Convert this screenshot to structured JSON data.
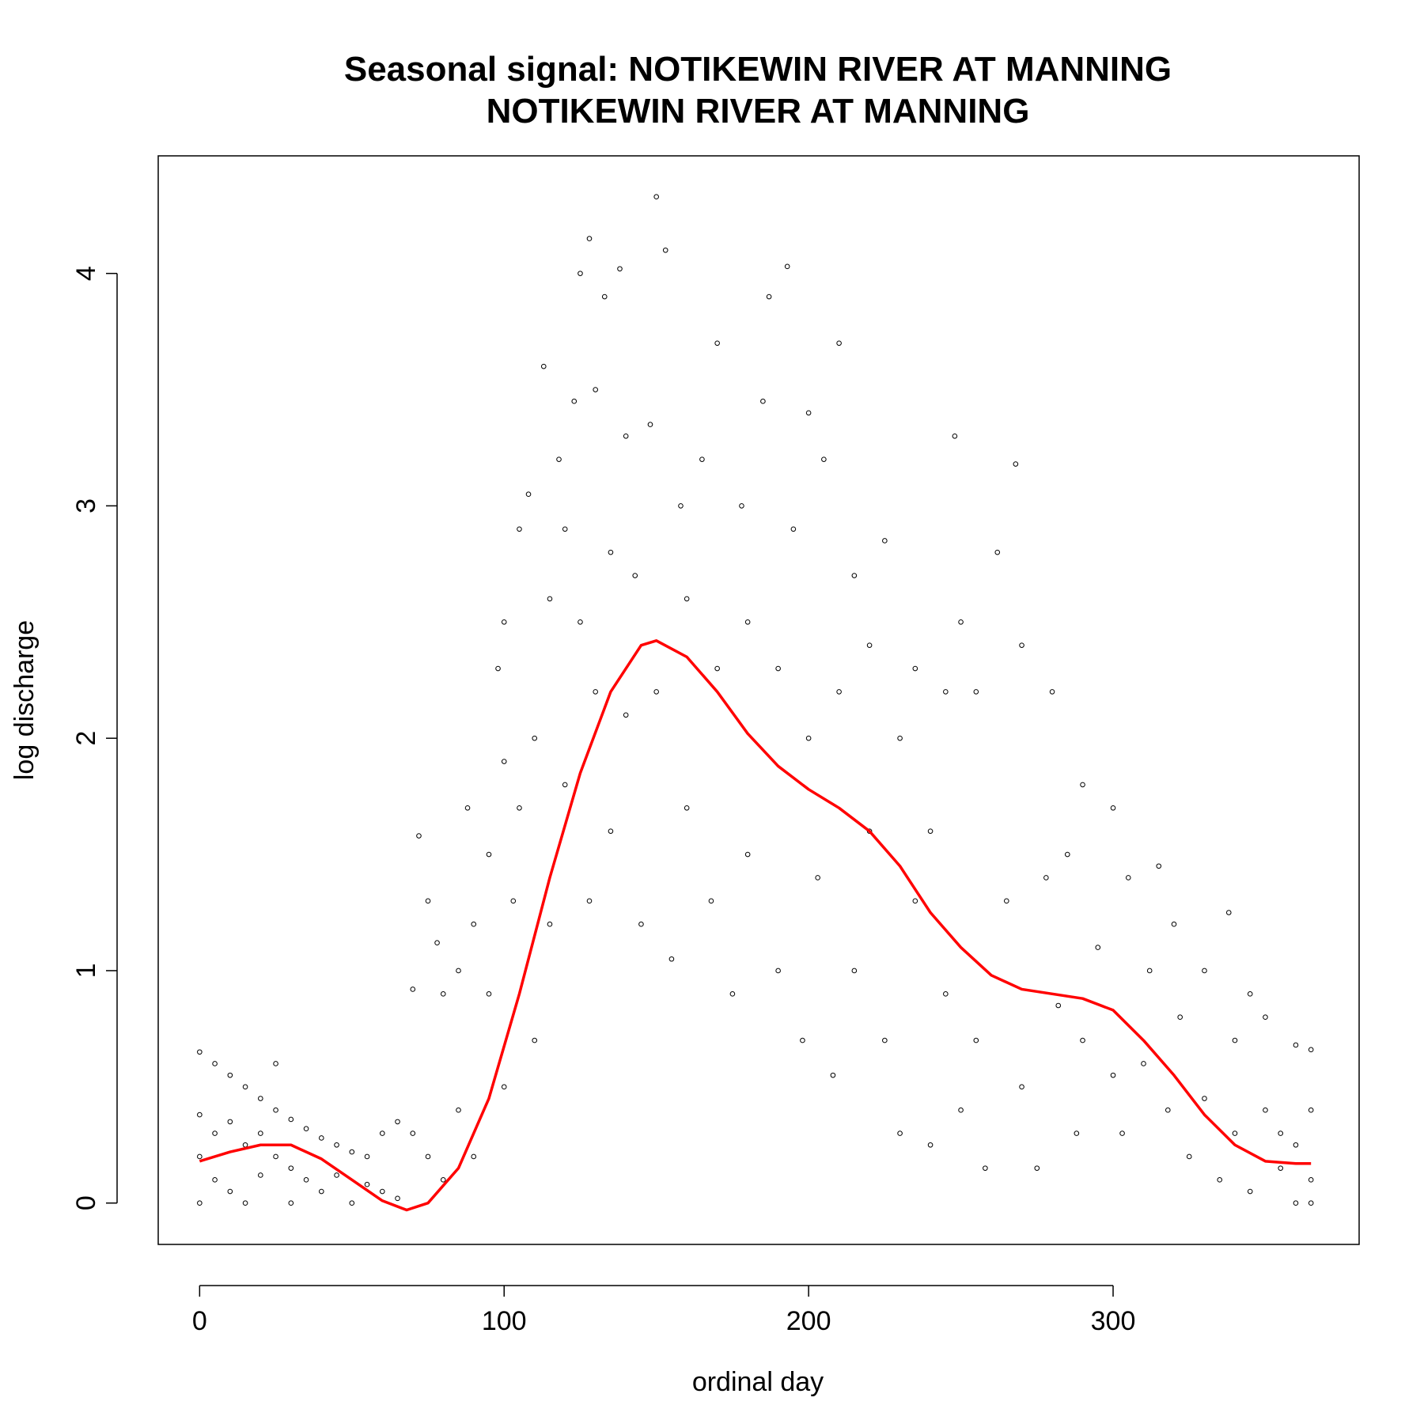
{
  "chart_data": {
    "type": "scatter",
    "title": [
      "Seasonal signal: NOTIKEWIN RIVER AT MANNING",
      "NOTIKEWIN RIVER AT MANNING"
    ],
    "x_label": "ordinal day",
    "y_label": "log discharge",
    "xlim": [
      -13.6,
      380.8
    ],
    "ylim": [
      -0.178,
      4.506
    ],
    "xticks": [
      0,
      100,
      200,
      300
    ],
    "yticks": [
      0,
      1,
      2,
      3,
      4
    ],
    "grid": false,
    "series": [
      {
        "type": "scatter",
        "color": "#000000",
        "x": [
          0,
          0,
          0,
          0,
          5,
          5,
          5,
          10,
          10,
          10,
          15,
          15,
          15,
          20,
          20,
          20,
          25,
          25,
          25,
          30,
          30,
          30,
          35,
          35,
          40,
          40,
          45,
          45,
          50,
          50,
          55,
          55,
          60,
          60,
          65,
          65,
          70,
          70,
          72,
          75,
          75,
          78,
          80,
          80,
          85,
          85,
          88,
          90,
          90,
          95,
          95,
          98,
          100,
          100,
          100,
          103,
          105,
          105,
          108,
          110,
          110,
          113,
          115,
          115,
          118,
          120,
          120,
          123,
          125,
          125,
          128,
          128,
          130,
          130,
          133,
          135,
          135,
          138,
          140,
          140,
          143,
          145,
          148,
          150,
          150,
          153,
          155,
          158,
          160,
          160,
          165,
          168,
          170,
          170,
          175,
          178,
          180,
          180,
          185,
          187,
          190,
          190,
          193,
          195,
          198,
          200,
          200,
          203,
          205,
          208,
          210,
          210,
          215,
          215,
          220,
          220,
          225,
          225,
          230,
          230,
          235,
          235,
          240,
          240,
          245,
          245,
          248,
          250,
          250,
          255,
          255,
          258,
          262,
          265,
          268,
          270,
          270,
          275,
          278,
          280,
          282,
          285,
          288,
          290,
          290,
          295,
          300,
          300,
          303,
          305,
          310,
          312,
          315,
          318,
          320,
          322,
          325,
          330,
          330,
          335,
          338,
          340,
          340,
          345,
          345,
          350,
          350,
          355,
          355,
          360,
          360,
          360,
          365,
          365,
          365,
          365
        ],
        "values": [
          0.65,
          0.38,
          0.2,
          0,
          0.6,
          0.3,
          0.1,
          0.55,
          0.35,
          0.05,
          0.5,
          0.25,
          0,
          0.45,
          0.3,
          0.12,
          0.4,
          0.6,
          0.2,
          0.36,
          0.15,
          0,
          0.32,
          0.1,
          0.28,
          0.05,
          0.25,
          0.12,
          0.22,
          0,
          0.2,
          0.08,
          0.3,
          0.05,
          0.35,
          0.02,
          0.92,
          0.3,
          1.58,
          1.3,
          0.2,
          1.12,
          0.9,
          0.1,
          1.0,
          0.4,
          1.7,
          1.2,
          0.2,
          0.9,
          1.5,
          2.3,
          2.5,
          1.9,
          0.5,
          1.3,
          2.9,
          1.7,
          3.05,
          2.0,
          0.7,
          3.6,
          2.6,
          1.2,
          3.2,
          2.9,
          1.8,
          3.45,
          4.0,
          2.5,
          4.15,
          1.3,
          3.5,
          2.2,
          3.9,
          2.8,
          1.6,
          4.02,
          3.3,
          2.1,
          2.7,
          1.2,
          3.35,
          4.33,
          2.2,
          4.1,
          1.05,
          3.0,
          2.6,
          1.7,
          3.2,
          1.3,
          3.7,
          2.3,
          0.9,
          3.0,
          2.5,
          1.5,
          3.45,
          3.9,
          2.3,
          1.0,
          4.03,
          2.9,
          0.7,
          3.4,
          2.0,
          1.4,
          3.2,
          0.55,
          3.7,
          2.2,
          2.7,
          1.0,
          2.4,
          1.6,
          2.85,
          0.7,
          2.0,
          0.3,
          2.3,
          1.3,
          1.6,
          0.25,
          2.2,
          0.9,
          3.3,
          2.5,
          0.4,
          2.2,
          0.7,
          0.15,
          2.8,
          1.3,
          3.18,
          2.4,
          0.5,
          0.15,
          1.4,
          2.2,
          0.85,
          1.5,
          0.3,
          1.8,
          0.7,
          1.1,
          1.7,
          0.55,
          0.3,
          1.4,
          0.6,
          1.0,
          1.45,
          0.4,
          1.2,
          0.8,
          0.2,
          1.0,
          0.45,
          0.1,
          1.25,
          0.7,
          0.3,
          0.9,
          0.05,
          0.8,
          0.4,
          0.3,
          0.15,
          0.68,
          0.25,
          0,
          0.66,
          0.4,
          0.1,
          0
        ]
      },
      {
        "type": "line",
        "color": "#ff0000",
        "x": [
          0,
          10,
          20,
          30,
          40,
          50,
          60,
          68,
          75,
          85,
          95,
          105,
          115,
          125,
          135,
          145,
          150,
          160,
          170,
          180,
          190,
          200,
          210,
          220,
          230,
          240,
          250,
          260,
          270,
          280,
          290,
          300,
          310,
          320,
          330,
          340,
          350,
          360,
          365
        ],
        "values": [
          0.18,
          0.22,
          0.25,
          0.25,
          0.19,
          0.1,
          0.01,
          -0.03,
          0.0,
          0.15,
          0.45,
          0.9,
          1.4,
          1.85,
          2.2,
          2.4,
          2.42,
          2.35,
          2.2,
          2.02,
          1.88,
          1.78,
          1.7,
          1.6,
          1.45,
          1.25,
          1.1,
          0.98,
          0.92,
          0.9,
          0.88,
          0.83,
          0.7,
          0.55,
          0.38,
          0.25,
          0.18,
          0.17,
          0.17
        ]
      }
    ]
  }
}
